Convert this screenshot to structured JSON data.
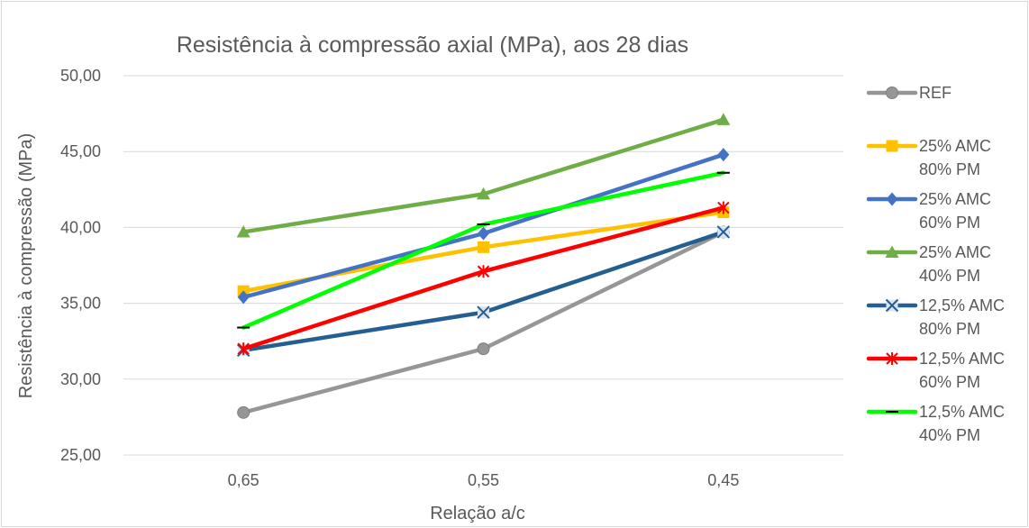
{
  "chart_data": {
    "type": "line",
    "title": "Resistência à compressão  axial (MPa), aos 28 dias",
    "xlabel": "Relação a/c",
    "ylabel": "Resistência à compressão (MPa)",
    "categories": [
      "0,65",
      "0,55",
      "0,45"
    ],
    "ylim": [
      25,
      50
    ],
    "yticks": [
      25,
      30,
      35,
      40,
      45,
      50
    ],
    "ytick_labels": [
      "25,00",
      "30,00",
      "35,00",
      "40,00",
      "45,00",
      "50,00"
    ],
    "grid": true,
    "legend_position": "right",
    "series": [
      {
        "name": "REF",
        "legend_lines": [
          "REF"
        ],
        "values": [
          27.8,
          32.0,
          39.7
        ],
        "color": "#969696",
        "marker": "circle"
      },
      {
        "name": "25% AMC 80% PM",
        "legend_lines": [
          "25% AMC",
          "80% PM"
        ],
        "values": [
          35.8,
          38.7,
          41.0
        ],
        "color": "#FFC000",
        "marker": "square"
      },
      {
        "name": "25% AMC 60% PM",
        "legend_lines": [
          "25% AMC",
          "60% PM"
        ],
        "values": [
          35.4,
          39.6,
          44.8
        ],
        "color": "#4472C4",
        "marker": "diamond"
      },
      {
        "name": "25% AMC 40% PM",
        "legend_lines": [
          "25% AMC",
          "40% PM"
        ],
        "values": [
          39.7,
          42.2,
          47.1
        ],
        "color": "#70AD47",
        "marker": "triangle"
      },
      {
        "name": "12,5% AMC 80% PM",
        "legend_lines": [
          "12,5% AMC",
          "80% PM"
        ],
        "values": [
          31.9,
          34.4,
          39.7
        ],
        "color": "#255E91",
        "marker": "x"
      },
      {
        "name": "12,5% AMC 60% PM",
        "legend_lines": [
          "12,5% AMC",
          "60% PM"
        ],
        "values": [
          32.0,
          37.1,
          41.3
        ],
        "color": "#FF0000",
        "marker": "star"
      },
      {
        "name": "12,5% AMC 40% PM",
        "legend_lines": [
          "12,5% AMC",
          "40% PM"
        ],
        "values": [
          33.4,
          40.2,
          43.6
        ],
        "color": "#00FF00",
        "marker": "dash"
      }
    ]
  }
}
